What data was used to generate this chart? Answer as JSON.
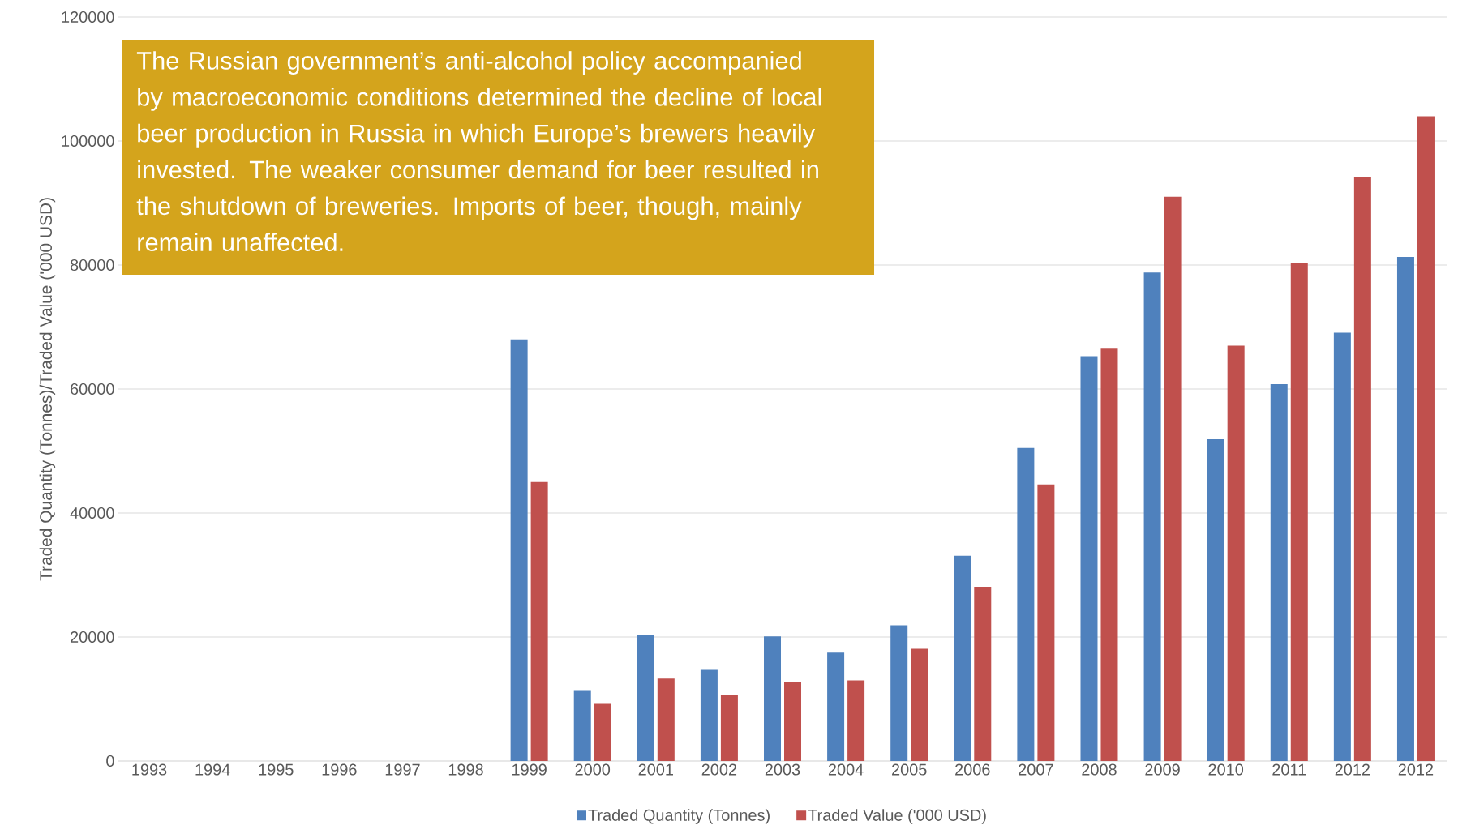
{
  "chart_data": {
    "type": "bar",
    "ylabel": "Traded Quantity (Tonnes)/Traded Value ('000 USD)",
    "categories": [
      "1993",
      "1994",
      "1995",
      "1996",
      "1997",
      "1998",
      "1999",
      "2000",
      "2001",
      "2002",
      "2003",
      "2004",
      "2005",
      "2006",
      "2007",
      "2008",
      "2009",
      "2010",
      "2011",
      "2012",
      "2012"
    ],
    "series": [
      {
        "name": "Traded Quantity (Tonnes)",
        "color": "#4f81bd",
        "values": [
          null,
          null,
          null,
          null,
          null,
          null,
          68000,
          11300,
          20400,
          14700,
          20100,
          17500,
          21900,
          33100,
          50500,
          65300,
          78800,
          51900,
          60800,
          69100,
          81300
        ]
      },
      {
        "name": "Traded Value ('000 USD)",
        "color": "#c0504d",
        "values": [
          null,
          null,
          null,
          null,
          null,
          null,
          45000,
          9200,
          13300,
          10600,
          12700,
          13000,
          18100,
          28100,
          44600,
          66500,
          91000,
          67000,
          80400,
          94200,
          104000
        ]
      }
    ],
    "ylim": [
      0,
      120000
    ],
    "yticks": [
      0,
      20000,
      40000,
      60000,
      80000,
      100000,
      120000
    ],
    "grid": "y",
    "legend": "bottom",
    "annotations": [
      "The Russian government’s anti-alcohol policy accompanied by macroeconomic conditions determined the decline of local beer production in Russia in which Europe’s brewers heavily invested. The weaker consumer demand for beer resulted in the shutdown of breweries. Imports of beer, though, mainly remain unaffected."
    ]
  }
}
